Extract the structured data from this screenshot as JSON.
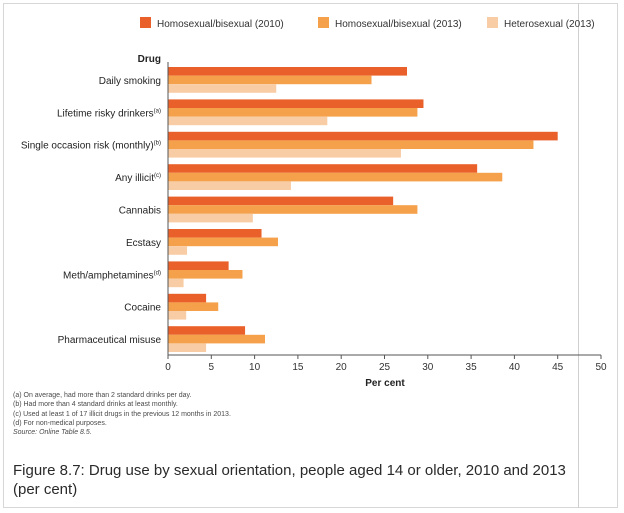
{
  "chart_data": {
    "type": "bar",
    "orientation": "horizontal",
    "title": "Figure 8.7: Drug use by sexual orientation, people aged 14 or older, 2010 and 2013 (per cent)",
    "category_axis_title": "Drug",
    "xlabel": "Per cent",
    "xlim": [
      0,
      50
    ],
    "xticks": [
      "0",
      "5",
      "10",
      "15",
      "20",
      "25",
      "30",
      "35",
      "40",
      "45",
      "50"
    ],
    "categories": [
      {
        "label": "Daily smoking",
        "sup": ""
      },
      {
        "label": "Lifetime risky drinkers",
        "sup": "(a)"
      },
      {
        "label": "Single occasion risk (monthly)",
        "sup": "(b)"
      },
      {
        "label": "Any illicit",
        "sup": "(c)"
      },
      {
        "label": "Cannabis",
        "sup": ""
      },
      {
        "label": "Ecstasy",
        "sup": ""
      },
      {
        "label": "Meth/amphetamines",
        "sup": "(d)"
      },
      {
        "label": "Cocaine",
        "sup": ""
      },
      {
        "label": "Pharmaceutical misuse",
        "sup": ""
      }
    ],
    "series": [
      {
        "name": "Homosexual/bisexual (2010)",
        "color": "#e9602a",
        "values": [
          27.6,
          29.5,
          45.0,
          35.7,
          26.0,
          10.8,
          7.0,
          4.4,
          8.9
        ]
      },
      {
        "name": "Homosexual/bisexual (2013)",
        "color": "#f5a04a",
        "values": [
          23.5,
          28.8,
          42.2,
          38.6,
          28.8,
          12.7,
          8.6,
          5.8,
          11.2
        ]
      },
      {
        "name": "Heterosexual (2013)",
        "color": "#f8cda6",
        "values": [
          12.5,
          18.4,
          26.9,
          14.2,
          9.8,
          2.2,
          1.8,
          2.1,
          4.4
        ]
      }
    ],
    "legend_position": "top",
    "grid": false
  },
  "notes": {
    "a": "(a)  On average, had more than 2 standard drinks per day.",
    "b": "(b)  Had more than 4 standard drinks at least monthly.",
    "c": "(c)  Used at least 1 of 17 illicit drugs in the previous 12 months in 2013.",
    "d": "(d)  For non-medical purposes.",
    "source": "Source: Online Table 8.5."
  }
}
